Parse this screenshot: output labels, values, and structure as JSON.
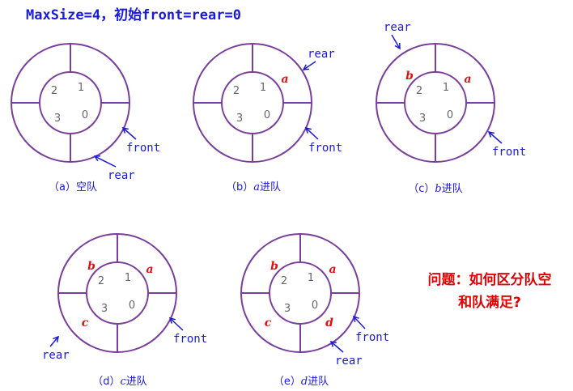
{
  "title": "MaxSize=4，初始front=rear=0",
  "question": {
    "line1": "问题：如何区分队空",
    "line2": "和队满足?"
  },
  "slot_numbers": [
    "0",
    "1",
    "2",
    "3"
  ],
  "pointer_labels": {
    "front": "front",
    "rear": "rear"
  },
  "colors": {
    "ring": "#7a3e9d",
    "pointer": "#1a1adc",
    "element": "#dd1111",
    "question": "#e00000"
  },
  "states": [
    {
      "id": "a",
      "caption": {
        "prefix": "（a）",
        "elem": "",
        "suffix": "空队"
      },
      "elements": [],
      "front": "front",
      "rear": "rear"
    },
    {
      "id": "b",
      "caption": {
        "prefix": "（b）",
        "elem": "a",
        "suffix": "进队"
      },
      "elements": [
        {
          "slot": 1,
          "value": "a"
        }
      ],
      "front": "front",
      "rear": "rear"
    },
    {
      "id": "c",
      "caption": {
        "prefix": "（c）",
        "elem": "b",
        "suffix": "进队"
      },
      "elements": [
        {
          "slot": 1,
          "value": "a"
        },
        {
          "slot": 2,
          "value": "b"
        }
      ],
      "front": "front",
      "rear": "rear"
    },
    {
      "id": "d",
      "caption": {
        "prefix": "（d）",
        "elem": "c",
        "suffix": "进队"
      },
      "elements": [
        {
          "slot": 1,
          "value": "a"
        },
        {
          "slot": 2,
          "value": "b"
        },
        {
          "slot": 3,
          "value": "c"
        }
      ],
      "front": "front",
      "rear": "rear"
    },
    {
      "id": "e",
      "caption": {
        "prefix": "（e）",
        "elem": "d",
        "suffix": "进队"
      },
      "elements": [
        {
          "slot": 1,
          "value": "a"
        },
        {
          "slot": 2,
          "value": "b"
        },
        {
          "slot": 3,
          "value": "c"
        },
        {
          "slot": 0,
          "value": "d"
        }
      ],
      "front": "front",
      "rear": "rear"
    }
  ]
}
